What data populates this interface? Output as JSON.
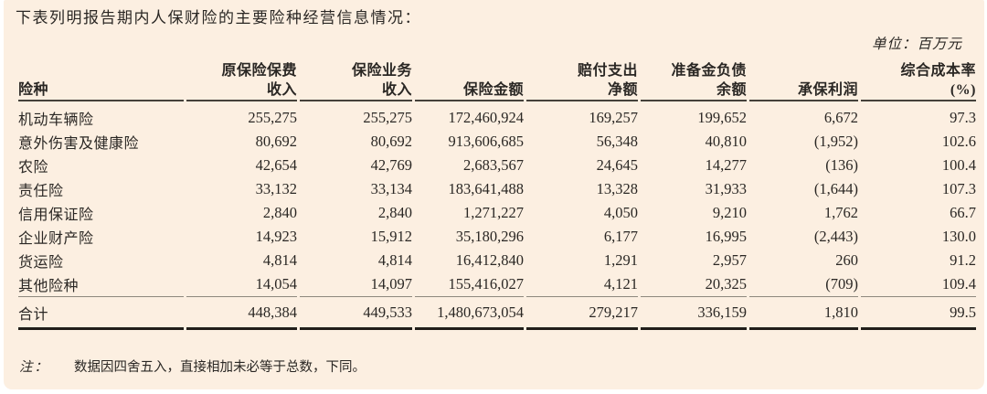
{
  "intro": "下表列明报告期内人保财险的主要险种经营信息情况：",
  "unit_label": "单位：百万元",
  "table": {
    "columns": [
      {
        "line1": "",
        "line2": "险种"
      },
      {
        "line1": "原保险保费",
        "line2": "收入"
      },
      {
        "line1": "保险业务",
        "line2": "收入"
      },
      {
        "line1": "",
        "line2": "保险金额"
      },
      {
        "line1": "赔付支出",
        "line2": "净额"
      },
      {
        "line1": "准备金负债",
        "line2": "余额"
      },
      {
        "line1": "",
        "line2": "承保利润"
      },
      {
        "line1": "综合成本率",
        "line2": "(%)"
      }
    ],
    "rows": [
      {
        "label": "机动车辆险",
        "values": [
          "255,275",
          "255,275",
          "172,460,924",
          "169,257",
          "199,652",
          "6,672",
          "97.3"
        ]
      },
      {
        "label": "意外伤害及健康险",
        "values": [
          "80,692",
          "80,692",
          "913,606,685",
          "56,348",
          "40,810",
          "(1,952)",
          "102.6"
        ]
      },
      {
        "label": "农险",
        "values": [
          "42,654",
          "42,769",
          "2,683,567",
          "24,645",
          "14,277",
          "(136)",
          "100.4"
        ]
      },
      {
        "label": "责任险",
        "values": [
          "33,132",
          "33,134",
          "183,641,488",
          "13,328",
          "31,933",
          "(1,644)",
          "107.3"
        ]
      },
      {
        "label": "信用保证险",
        "values": [
          "2,840",
          "2,840",
          "1,271,227",
          "4,050",
          "9,210",
          "1,762",
          "66.7"
        ]
      },
      {
        "label": "企业财产险",
        "values": [
          "14,923",
          "15,912",
          "35,180,296",
          "6,177",
          "16,995",
          "(2,443)",
          "130.0"
        ]
      },
      {
        "label": "货运险",
        "values": [
          "4,814",
          "4,814",
          "16,412,840",
          "1,291",
          "2,957",
          "260",
          "91.2"
        ]
      },
      {
        "label": "其他险种",
        "values": [
          "14,054",
          "14,097",
          "155,416,027",
          "4,121",
          "20,325",
          "(709)",
          "109.4"
        ]
      }
    ],
    "total": {
      "label": "合计",
      "values": [
        "448,384",
        "449,533",
        "1,480,673,054",
        "279,217",
        "336,159",
        "1,810",
        "99.5"
      ]
    }
  },
  "note": {
    "label": "注：",
    "text": "数据因四舍五入，直接相加未必等于总数，下同。"
  },
  "colors": {
    "background": "#fcefe1",
    "text": "#2a2724",
    "header_rule": "#45413a",
    "total_top_rule": "#8e887d",
    "total_bottom_rule": "#211e1a"
  }
}
